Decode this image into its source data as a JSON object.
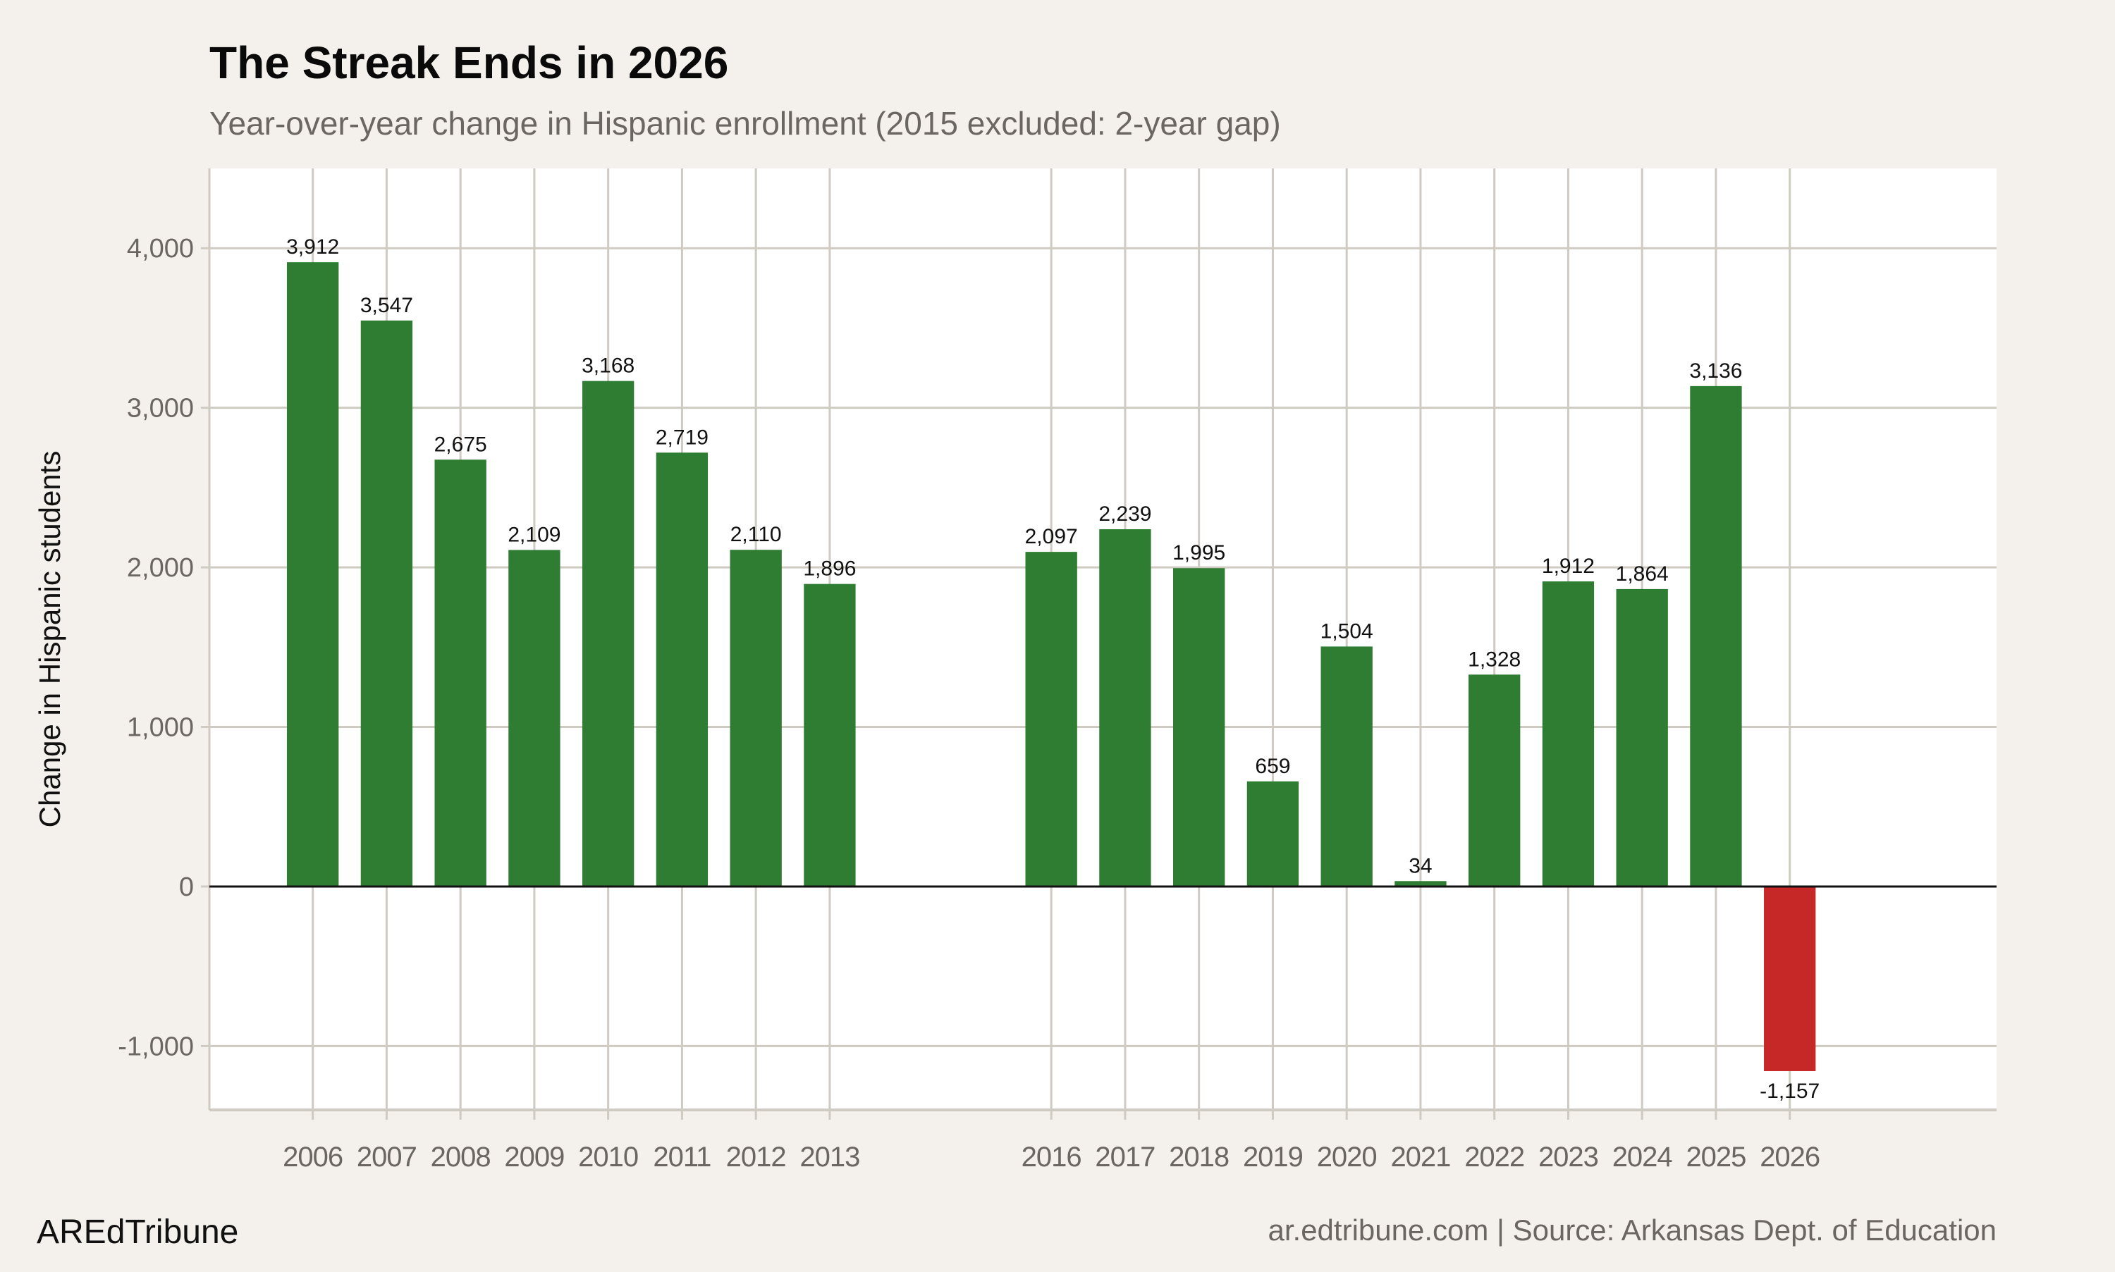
{
  "colors": {
    "background": "#f4f1ec",
    "panel": "#ffffff",
    "positive": "#2e7d32",
    "negative": "#c62828",
    "grid": "#cfcac2",
    "zero_line": "#111111",
    "muted_text": "#6b6661"
  },
  "footer": {
    "brand": "AREdTribune",
    "source": "ar.edtribune.com | Source: Arkansas Dept. of Education"
  },
  "chart_data": {
    "type": "bar",
    "title": "The Streak Ends in 2026",
    "subtitle": "Year-over-year change in Hispanic enrollment (2015 excluded: 2-year gap)",
    "xlabel": "",
    "ylabel": "Change in Hispanic students",
    "ylim": [
      -1400,
      4500
    ],
    "xlim": [
      2004.6,
      2028.8
    ],
    "yticks": [
      -1000,
      0,
      1000,
      2000,
      3000,
      4000
    ],
    "ytick_labels": [
      "-1,000",
      "0",
      "1,000",
      "2,000",
      "3,000",
      "4,000"
    ],
    "grid": true,
    "legend": "none",
    "categories": [
      "2006",
      "2007",
      "2008",
      "2009",
      "2010",
      "2011",
      "2012",
      "2013",
      "2016",
      "2017",
      "2018",
      "2019",
      "2020",
      "2021",
      "2022",
      "2023",
      "2024",
      "2025",
      "2026"
    ],
    "values": [
      3912,
      3547,
      2675,
      2109,
      3168,
      2719,
      2110,
      1896,
      2097,
      2239,
      1995,
      659,
      1504,
      34,
      1328,
      1912,
      1864,
      3136,
      -1157
    ],
    "data_labels": [
      "3,912",
      "3,547",
      "2,675",
      "2,109",
      "3,168",
      "2,719",
      "2,110",
      "1,896",
      "2,097",
      "2,239",
      "1,995",
      "659",
      "1,504",
      "34",
      "1,328",
      "1,912",
      "1,864",
      "3,136",
      "-1,157"
    ]
  }
}
